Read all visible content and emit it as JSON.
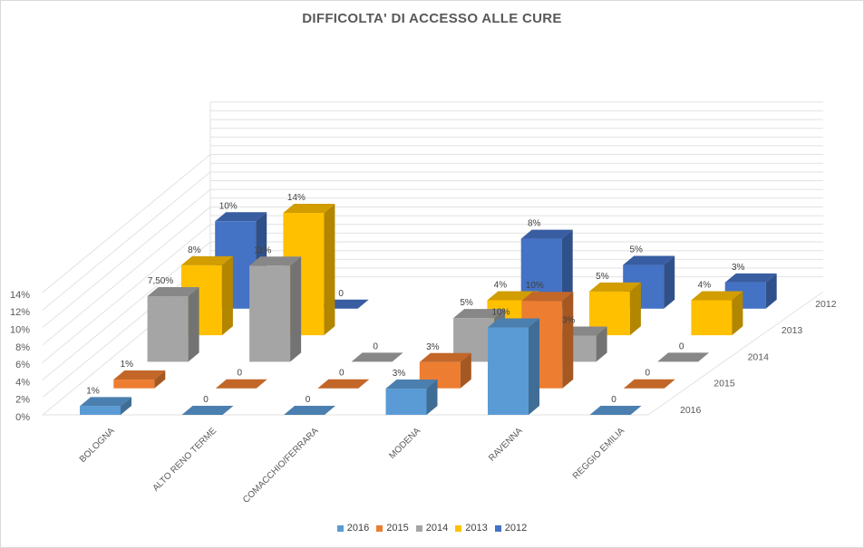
{
  "chart_data": {
    "type": "bar",
    "subtype": "3d-column",
    "title": "DIFFICOLTA'  DI ACCESSO ALLE CURE",
    "categories": [
      "BOLOGNA",
      "ALTO RENO TERME",
      "COMACCHIO/FERRARA",
      "MODENA",
      "RAVENNA",
      "REGGIO EMILIA"
    ],
    "series": [
      {
        "name": "2016",
        "color": "#5b9bd5",
        "values": [
          1,
          0,
          0,
          3,
          10,
          0
        ],
        "labels": [
          "1%",
          "0",
          "0",
          "3%",
          "10%",
          "0"
        ]
      },
      {
        "name": "2015",
        "color": "#ed7d31",
        "values": [
          1,
          0,
          0,
          3,
          10,
          0
        ],
        "labels": [
          "1%",
          "0",
          "0",
          "3%",
          "10%",
          "0"
        ]
      },
      {
        "name": "2014",
        "color": "#a5a5a5",
        "values": [
          7.5,
          11,
          0,
          5,
          3,
          0
        ],
        "labels": [
          "7,50%",
          "11%",
          "0",
          "5%",
          "3%",
          "0"
        ]
      },
      {
        "name": "2013",
        "color": "#ffc000",
        "values": [
          8,
          14,
          null,
          4,
          5,
          4
        ],
        "labels": [
          "8%",
          "14%",
          "",
          "4%",
          "5%",
          "4%"
        ]
      },
      {
        "name": "2012",
        "color": "#4472c4",
        "values": [
          10,
          0,
          null,
          8,
          5,
          3
        ],
        "labels": [
          "10%",
          "0",
          "",
          "8%",
          "5%",
          "3%"
        ]
      }
    ],
    "y_ticks": [
      "0%",
      "2%",
      "4%",
      "6%",
      "8%",
      "10%",
      "12%",
      "14%"
    ],
    "ylim": [
      0,
      14
    ],
    "depth_labels": [
      "2016",
      "2015",
      "2014",
      "2013",
      "2012"
    ],
    "grid": true,
    "legend_position": "bottom"
  }
}
